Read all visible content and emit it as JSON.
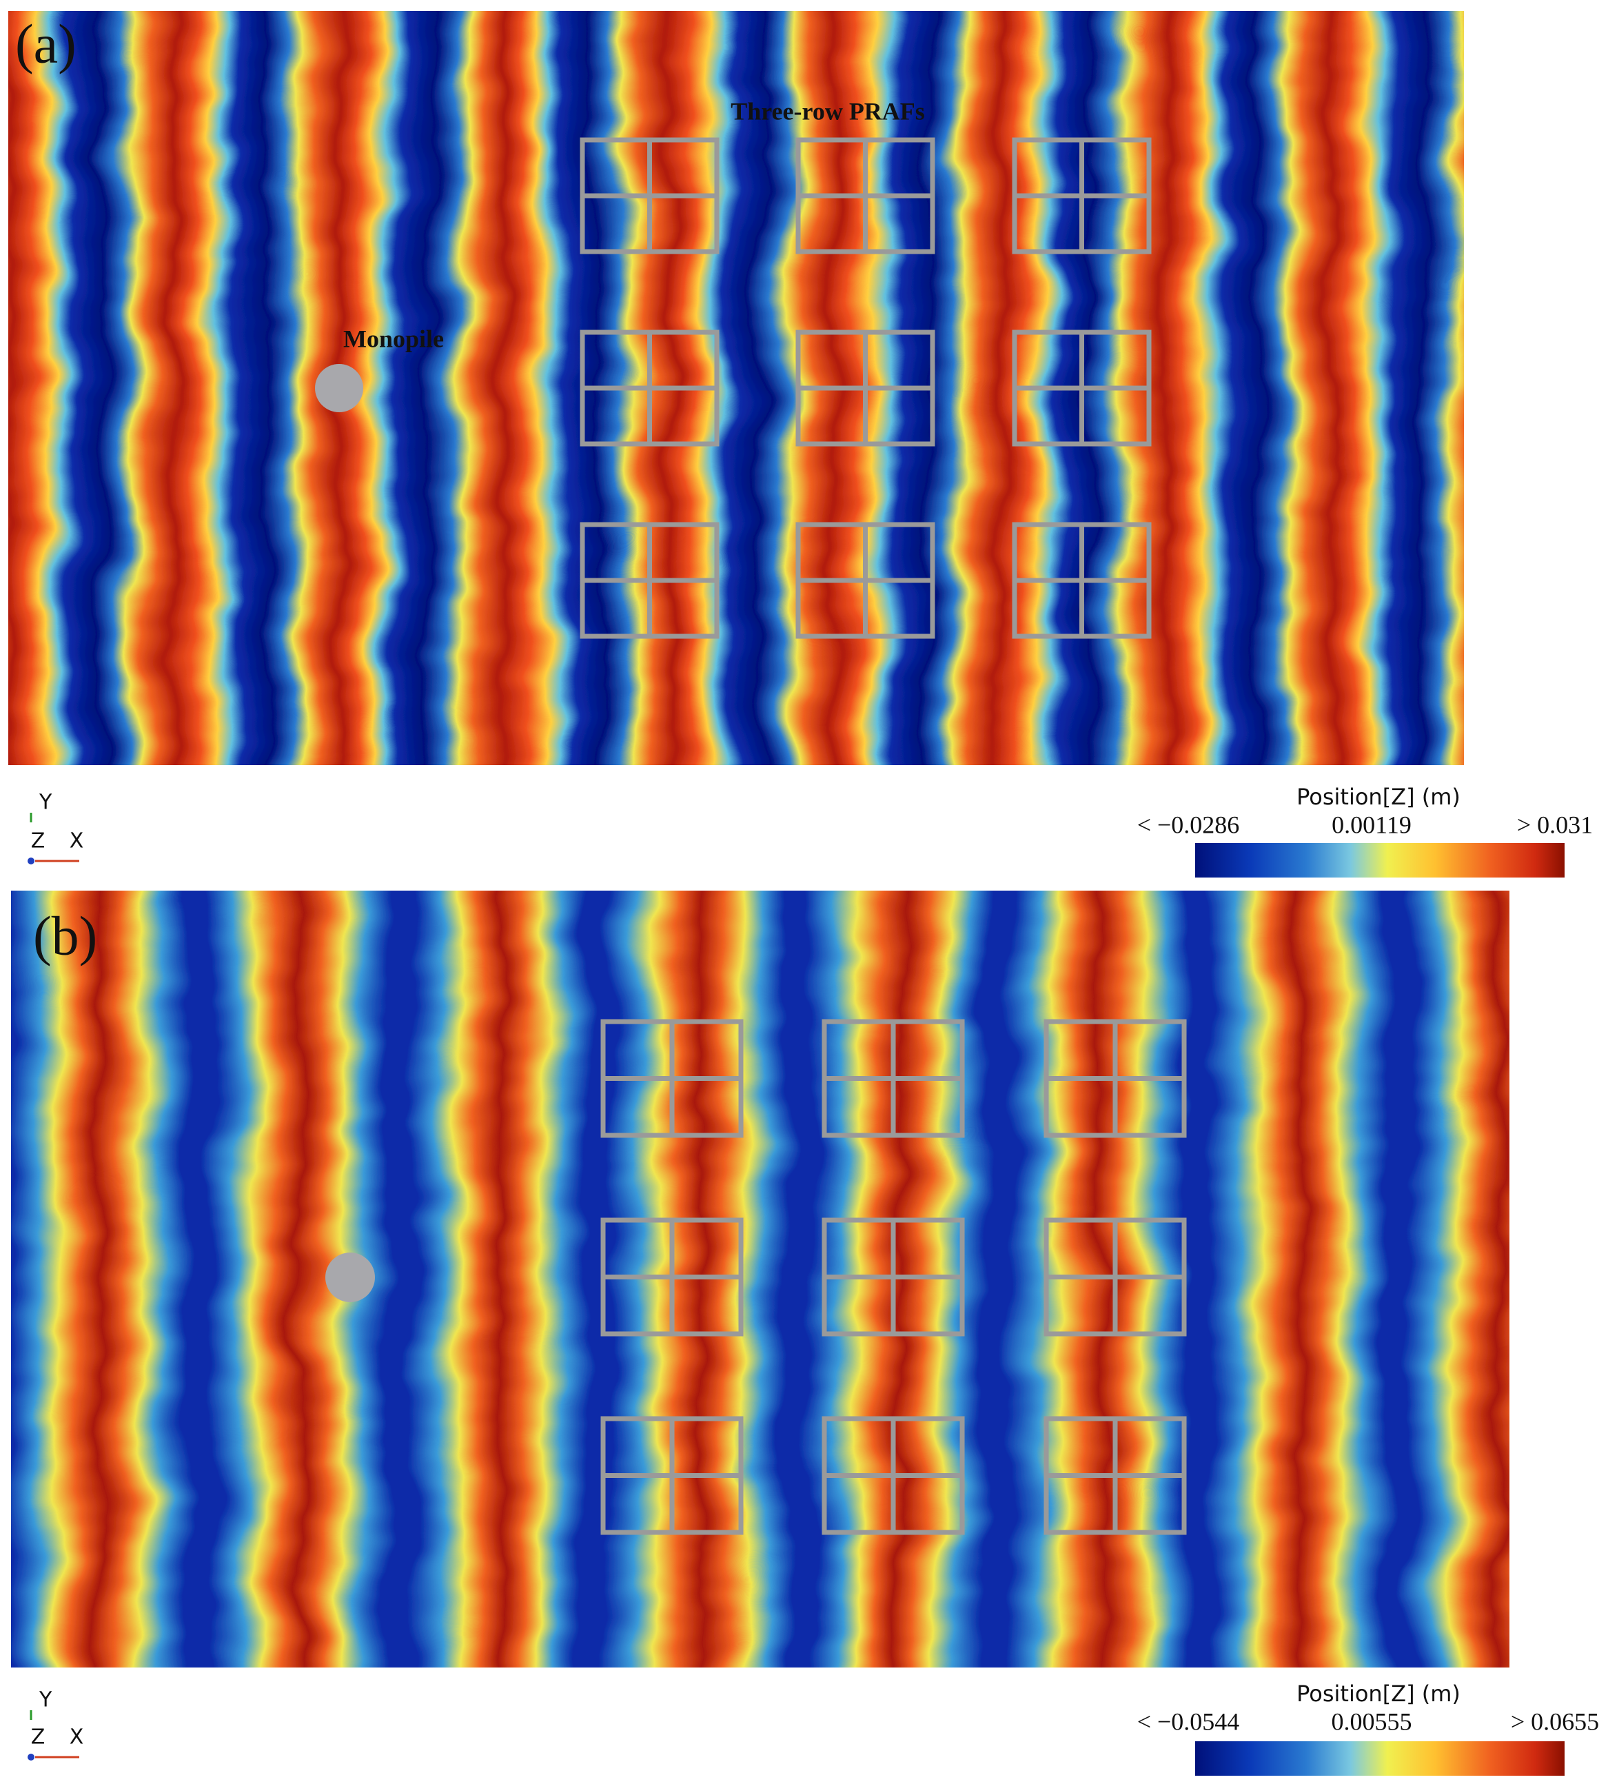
{
  "panels": [
    {
      "label": "(a)",
      "annotations": [
        "Three-row PRAFs",
        "Monopile"
      ],
      "legend": {
        "title": "Position[Z] (m)",
        "min": "< −0.0286",
        "mid": "0.00119",
        "max": "> 0.031"
      },
      "axes": {
        "y": "Y",
        "z": "Z",
        "x": "X"
      }
    },
    {
      "label": "(b)",
      "legend": {
        "title": "Position[Z] (m)",
        "min": "< −0.0544",
        "mid": "0.00555",
        "max": "> 0.0655"
      },
      "axes": {
        "y": "Y",
        "z": "Z",
        "x": "X"
      }
    }
  ]
}
